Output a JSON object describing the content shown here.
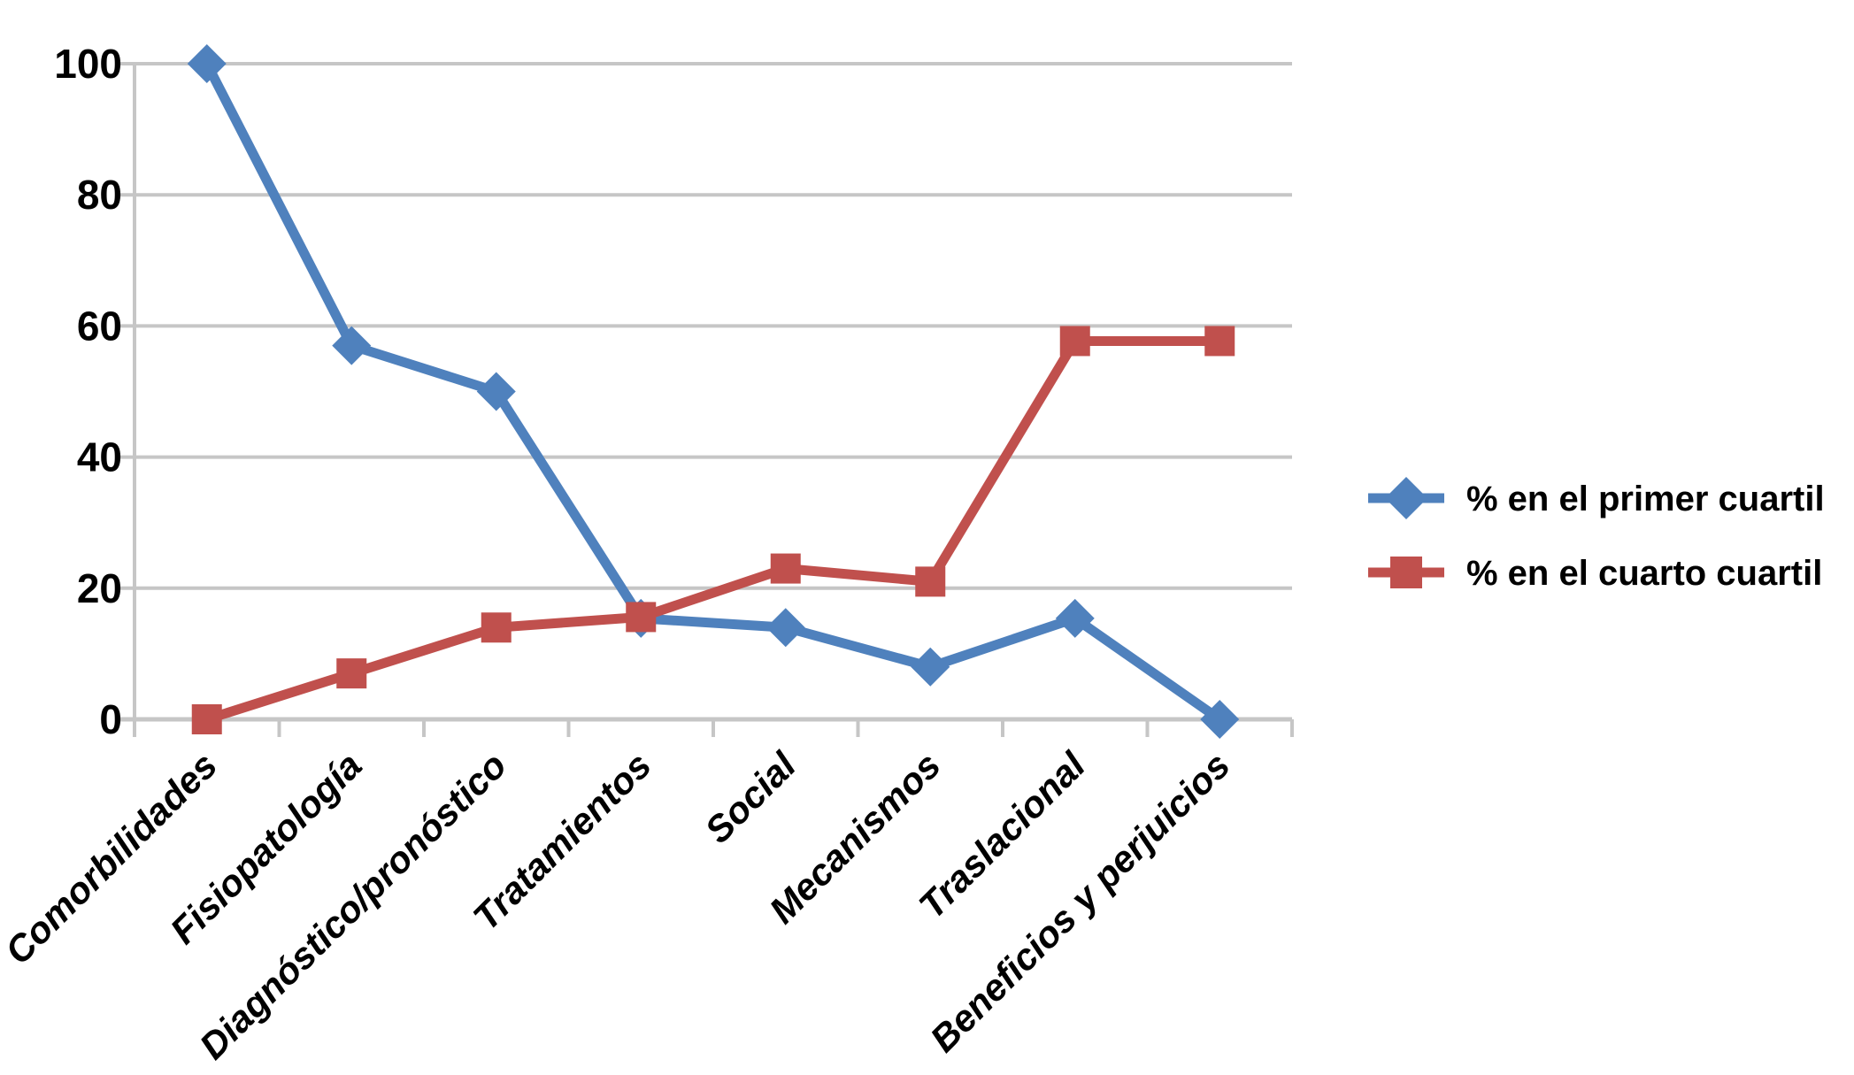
{
  "chart_data": {
    "type": "line",
    "title": "",
    "categories": [
      "Comorbilidades",
      "Fisiopatología",
      "Diagnóstico/pronóstico",
      "Tratamientos",
      "Social",
      "Mecanismos",
      "Traslacional",
      "Beneficios y perjuicios"
    ],
    "series": [
      {
        "name": "% en el primer cuartil",
        "marker": "diamond",
        "color": "#4F81BD",
        "values": [
          100,
          57,
          50,
          15.4,
          14,
          8,
          15.4,
          0
        ]
      },
      {
        "name": "% en el cuarto cuartil",
        "marker": "square",
        "color": "#C0504D",
        "values": [
          0,
          7,
          14,
          15.6,
          23,
          21,
          57.7,
          57.7
        ]
      }
    ],
    "y_axis": {
      "min": 0,
      "max": 100,
      "step": 20,
      "tick_labels": [
        "0",
        "20",
        "40",
        "60",
        "80",
        "100"
      ]
    },
    "x_axis": {
      "label_rotation": -45
    },
    "legend_position": "right",
    "grid": true,
    "colors": {
      "gridline": "#C6C6C6",
      "axis": "#C6C6C6",
      "text": "#000000",
      "background": "#FFFFFF"
    }
  }
}
